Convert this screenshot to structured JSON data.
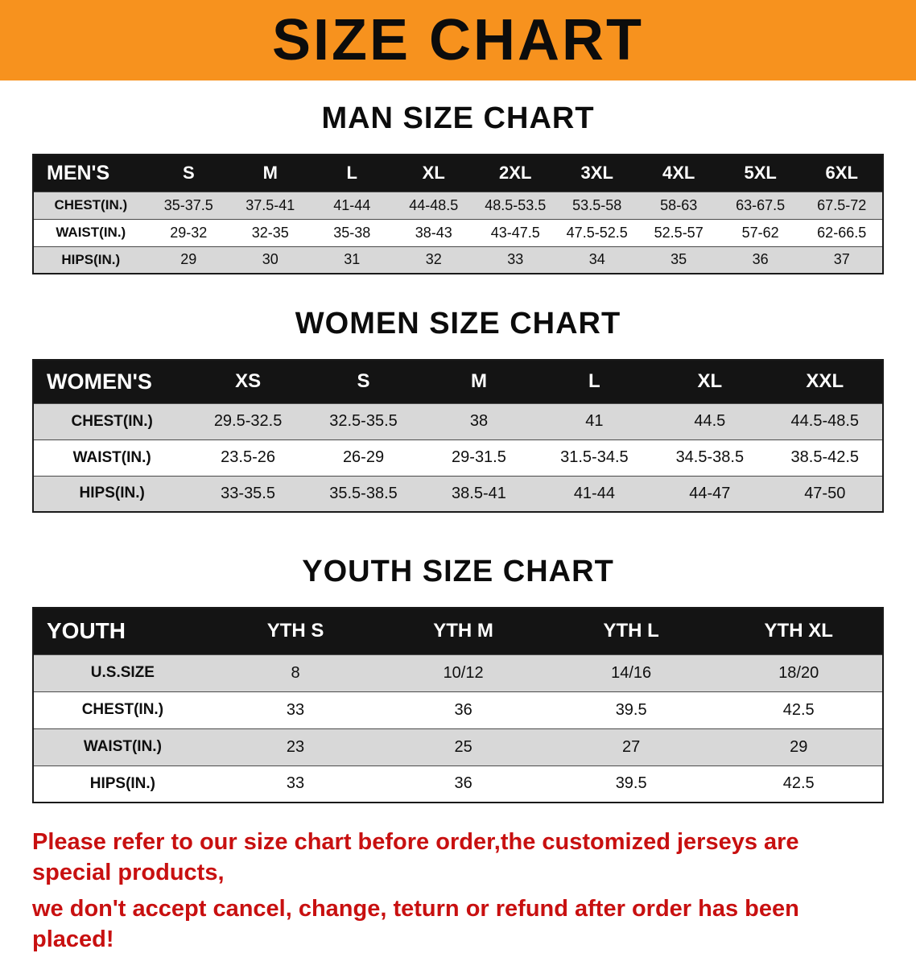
{
  "banner": {
    "title": "SIZE CHART"
  },
  "colors": {
    "banner_bg": "#F7921E",
    "table_header_bg": "#141414",
    "row_gray": "#D8D8D8",
    "footer_text": "#C81010",
    "text": "#0F0F0F"
  },
  "chart_data": [
    {
      "type": "table",
      "title": "MAN SIZE CHART",
      "columns": [
        "MEN'S",
        "S",
        "M",
        "L",
        "XL",
        "2XL",
        "3XL",
        "4XL",
        "5XL",
        "6XL"
      ],
      "rows": [
        [
          "CHEST(IN.)",
          "35-37.5",
          "37.5-41",
          "41-44",
          "44-48.5",
          "48.5-53.5",
          "53.5-58",
          "58-63",
          "63-67.5",
          "67.5-72"
        ],
        [
          "WAIST(IN.)",
          "29-32",
          "32-35",
          "35-38",
          "38-43",
          "43-47.5",
          "47.5-52.5",
          "52.5-57",
          "57-62",
          "62-66.5"
        ],
        [
          "HIPS(IN.)",
          "29",
          "30",
          "31",
          "32",
          "33",
          "34",
          "35",
          "36",
          "37"
        ]
      ]
    },
    {
      "type": "table",
      "title": "WOMEN SIZE CHART",
      "columns": [
        "WOMEN'S",
        "XS",
        "S",
        "M",
        "L",
        "XL",
        "XXL"
      ],
      "rows": [
        [
          "CHEST(IN.)",
          "29.5-32.5",
          "32.5-35.5",
          "38",
          "41",
          "44.5",
          "44.5-48.5"
        ],
        [
          "WAIST(IN.)",
          "23.5-26",
          "26-29",
          "29-31.5",
          "31.5-34.5",
          "34.5-38.5",
          "38.5-42.5"
        ],
        [
          "HIPS(IN.)",
          "33-35.5",
          "35.5-38.5",
          "38.5-41",
          "41-44",
          "44-47",
          "47-50"
        ]
      ]
    },
    {
      "type": "table",
      "title": "YOUTH SIZE CHART",
      "columns": [
        "YOUTH",
        "YTH S",
        "YTH M",
        "YTH L",
        "YTH XL"
      ],
      "rows": [
        [
          "U.S.SIZE",
          "8",
          "10/12",
          "14/16",
          "18/20"
        ],
        [
          "CHEST(IN.)",
          "33",
          "36",
          "39.5",
          "42.5"
        ],
        [
          "WAIST(IN.)",
          "23",
          "25",
          "27",
          "29"
        ],
        [
          "HIPS(IN.)",
          "33",
          "36",
          "39.5",
          "42.5"
        ]
      ]
    }
  ],
  "footer": {
    "lines": [
      "Please refer to our size chart before order,the customized jerseys are special products,",
      "we don't accept cancel, change, teturn or refund after order has been placed!"
    ]
  }
}
